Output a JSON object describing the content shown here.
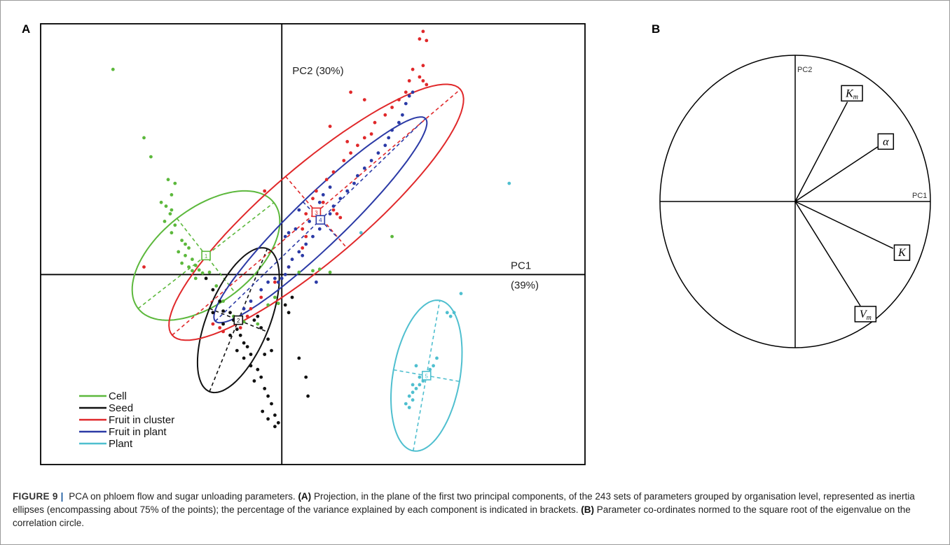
{
  "panel_a_label": "A",
  "panel_b_label": "B",
  "caption": {
    "figure_number": "FIGURE 9",
    "separator": "|",
    "lead": "PCA on phloem flow and sugar unloading parameters.",
    "a_tag": "(A)",
    "a_text": "Projection, in the plane of the first two principal components, of the 243 sets of parameters grouped by organisation level, represented as inertia ellipses (encompassing about 75% of the points); the percentage of the variance explained by each component is indicated in brackets.",
    "b_tag": "(B)",
    "b_text": "Parameter co-ordinates normed to the square root of the eigenvalue on the correlation circle."
  },
  "chart_data": [
    {
      "type": "scatter",
      "panel": "A",
      "xlabel": "PC1",
      "xlabel_note": "(39%)",
      "ylabel": "PC2 (30%)",
      "xlim": [
        -3.5,
        4.4
      ],
      "ylim": [
        -2.5,
        3.3
      ],
      "grid": false,
      "legend_position": "bottom-left",
      "series": [
        {
          "name": "Cell",
          "color": "#5cb83c",
          "ellipse": {
            "cx": -1.1,
            "cy": 0.25,
            "rx": 1.25,
            "ry": 0.62,
            "angle_deg": -38
          },
          "centroid_label": "1",
          "points": [
            [
              -2.45,
              2.7
            ],
            [
              -2.0,
              1.8
            ],
            [
              -1.9,
              1.55
            ],
            [
              -1.65,
              1.25
            ],
            [
              -1.55,
              1.2
            ],
            [
              -1.6,
              1.05
            ],
            [
              -1.75,
              0.95
            ],
            [
              -1.68,
              0.9
            ],
            [
              -1.6,
              0.85
            ],
            [
              -1.62,
              0.8
            ],
            [
              -1.7,
              0.7
            ],
            [
              -1.55,
              0.65
            ],
            [
              -1.6,
              0.55
            ],
            [
              -1.45,
              0.45
            ],
            [
              -1.4,
              0.4
            ],
            [
              -1.35,
              0.35
            ],
            [
              -1.5,
              0.3
            ],
            [
              -1.4,
              0.25
            ],
            [
              -1.3,
              0.2
            ],
            [
              -1.45,
              0.15
            ],
            [
              -1.35,
              0.1
            ],
            [
              -1.25,
              0.12
            ],
            [
              -1.3,
              0.05
            ],
            [
              -1.2,
              0.06
            ],
            [
              -1.15,
              0.02
            ],
            [
              -1.25,
              -0.05
            ],
            [
              -1.05,
              0.03
            ],
            [
              -0.95,
              -0.15
            ],
            [
              -0.85,
              -0.35
            ],
            [
              -0.7,
              -0.55
            ],
            [
              -0.55,
              -0.62
            ],
            [
              -0.35,
              -0.65
            ],
            [
              -0.2,
              -0.4
            ],
            [
              0.25,
              0.03
            ],
            [
              0.45,
              0.05
            ],
            [
              0.55,
              0.07
            ],
            [
              0.7,
              0.03
            ],
            [
              1.6,
              0.5
            ],
            [
              -0.1,
              -0.3
            ],
            [
              -0.05,
              -0.38
            ]
          ]
        },
        {
          "name": "Seed",
          "color": "#111111",
          "ellipse": {
            "cx": -0.63,
            "cy": -0.6,
            "rx": 1.12,
            "ry": 0.41,
            "angle_deg": -68
          },
          "centroid_label": "2",
          "points": [
            [
              -1.1,
              -0.05
            ],
            [
              -1.0,
              -0.2
            ],
            [
              -0.9,
              -0.35
            ],
            [
              -1.0,
              -0.5
            ],
            [
              -0.85,
              -0.48
            ],
            [
              -0.75,
              -0.5
            ],
            [
              -0.7,
              -0.6
            ],
            [
              -0.85,
              -0.65
            ],
            [
              -0.65,
              -0.72
            ],
            [
              -0.75,
              -0.8
            ],
            [
              -0.6,
              -0.8
            ],
            [
              -0.55,
              -0.9
            ],
            [
              -0.5,
              -0.95
            ],
            [
              -0.65,
              -1.0
            ],
            [
              -0.45,
              -1.05
            ],
            [
              -0.55,
              -1.1
            ],
            [
              -0.45,
              -1.2
            ],
            [
              -0.35,
              -1.25
            ],
            [
              -0.3,
              -1.35
            ],
            [
              -0.4,
              -1.4
            ],
            [
              -0.25,
              -1.5
            ],
            [
              -0.2,
              -1.6
            ],
            [
              -0.15,
              -1.7
            ],
            [
              -0.28,
              -1.8
            ],
            [
              -0.2,
              -1.9
            ],
            [
              -0.1,
              -2.0
            ],
            [
              -0.05,
              -1.95
            ],
            [
              -0.1,
              -1.85
            ],
            [
              0.05,
              -0.4
            ],
            [
              0.1,
              -0.5
            ],
            [
              0.15,
              -0.3
            ],
            [
              0.25,
              -1.1
            ],
            [
              0.35,
              -1.35
            ],
            [
              0.38,
              -1.6
            ],
            [
              -0.4,
              -0.6
            ],
            [
              -0.3,
              -0.7
            ],
            [
              -0.2,
              -0.85
            ],
            [
              -0.15,
              -1.0
            ],
            [
              -0.25,
              -1.05
            ],
            [
              -0.35,
              -0.55
            ]
          ]
        },
        {
          "name": "Fruit in cluster",
          "color": "#e0282a",
          "ellipse": {
            "cx": 0.5,
            "cy": 0.82,
            "rx": 2.75,
            "ry": 0.62,
            "angle_deg": -40.5
          },
          "centroid_label": "3",
          "points": [
            [
              -2.0,
              0.1
            ],
            [
              -1.0,
              -0.65
            ],
            [
              -0.9,
              -0.7
            ],
            [
              -0.85,
              -0.75
            ],
            [
              -0.6,
              -0.7
            ],
            [
              -0.5,
              -0.55
            ],
            [
              -0.45,
              -0.45
            ],
            [
              -0.3,
              -0.3
            ],
            [
              -0.1,
              -0.1
            ],
            [
              0.1,
              0.1
            ],
            [
              0.3,
              0.35
            ],
            [
              0.35,
              0.8
            ],
            [
              0.45,
              1.0
            ],
            [
              0.5,
              1.1
            ],
            [
              0.65,
              1.25
            ],
            [
              0.75,
              1.35
            ],
            [
              0.9,
              1.5
            ],
            [
              1.0,
              1.6
            ],
            [
              1.1,
              1.7
            ],
            [
              1.2,
              1.8
            ],
            [
              1.3,
              1.85
            ],
            [
              1.35,
              2.0
            ],
            [
              1.5,
              2.1
            ],
            [
              1.6,
              2.2
            ],
            [
              1.7,
              2.3
            ],
            [
              1.8,
              2.4
            ],
            [
              1.85,
              2.55
            ],
            [
              2.0,
              2.6
            ],
            [
              1.9,
              2.7
            ],
            [
              2.05,
              2.75
            ],
            [
              2.0,
              3.1
            ],
            [
              2.05,
              3.2
            ],
            [
              2.1,
              3.08
            ],
            [
              2.05,
              2.55
            ],
            [
              2.1,
              2.5
            ],
            [
              1.0,
              2.4
            ],
            [
              1.2,
              2.3
            ],
            [
              0.7,
              1.95
            ],
            [
              0.95,
              1.75
            ],
            [
              -0.25,
              1.1
            ],
            [
              0.6,
              0.95
            ],
            [
              0.75,
              0.85
            ],
            [
              0.8,
              0.8
            ],
            [
              0.85,
              0.75
            ],
            [
              0.3,
              0.6
            ],
            [
              0.35,
              0.5
            ]
          ]
        },
        {
          "name": "Fruit in plant",
          "color": "#2b3aa6",
          "ellipse": {
            "cx": 0.56,
            "cy": 0.72,
            "rx": 2.12,
            "ry": 0.33,
            "angle_deg": -44
          },
          "centroid_label": "4",
          "points": [
            [
              -0.55,
              -0.45
            ],
            [
              -0.45,
              -0.35
            ],
            [
              -0.3,
              -0.2
            ],
            [
              -0.2,
              -0.1
            ],
            [
              -0.1,
              -0.05
            ],
            [
              -0.05,
              -0.1
            ],
            [
              0.0,
              -0.05
            ],
            [
              0.05,
              0.0
            ],
            [
              0.1,
              0.1
            ],
            [
              0.15,
              0.2
            ],
            [
              0.25,
              0.3
            ],
            [
              0.35,
              0.4
            ],
            [
              0.45,
              0.5
            ],
            [
              0.55,
              0.6
            ],
            [
              0.6,
              0.7
            ],
            [
              0.7,
              0.8
            ],
            [
              0.75,
              0.9
            ],
            [
              0.85,
              1.0
            ],
            [
              0.95,
              1.1
            ],
            [
              1.05,
              1.2
            ],
            [
              1.1,
              1.3
            ],
            [
              1.2,
              1.4
            ],
            [
              1.3,
              1.5
            ],
            [
              1.4,
              1.6
            ],
            [
              1.5,
              1.7
            ],
            [
              1.55,
              1.8
            ],
            [
              1.6,
              1.9
            ],
            [
              1.7,
              2.0
            ],
            [
              1.75,
              2.1
            ],
            [
              1.8,
              2.25
            ],
            [
              1.85,
              2.35
            ],
            [
              1.9,
              2.4
            ],
            [
              0.5,
              -0.1
            ],
            [
              0.3,
              0.25
            ],
            [
              0.2,
              0.6
            ],
            [
              0.4,
              0.7
            ],
            [
              0.25,
              0.85
            ],
            [
              0.55,
              0.95
            ],
            [
              0.6,
              1.05
            ],
            [
              0.7,
              1.15
            ],
            [
              0.05,
              0.5
            ],
            [
              0.1,
              0.55
            ]
          ]
        },
        {
          "name": "Plant",
          "color": "#4fbfcf",
          "ellipse": {
            "cx": 2.1,
            "cy": -1.33,
            "rx": 1.11,
            "ry": 0.44,
            "angle_deg": -80
          },
          "centroid_label": "5",
          "points": [
            [
              3.3,
              1.2
            ],
            [
              2.6,
              -0.25
            ],
            [
              2.5,
              -0.5
            ],
            [
              2.4,
              -0.5
            ],
            [
              2.45,
              -0.55
            ],
            [
              2.25,
              -1.1
            ],
            [
              2.2,
              -1.2
            ],
            [
              2.15,
              -1.25
            ],
            [
              2.1,
              -1.3
            ],
            [
              2.05,
              -1.4
            ],
            [
              2.0,
              -1.45
            ],
            [
              1.95,
              -1.5
            ],
            [
              1.9,
              -1.55
            ],
            [
              1.85,
              -1.6
            ],
            [
              1.9,
              -1.65
            ],
            [
              1.8,
              -1.7
            ],
            [
              1.85,
              -1.75
            ],
            [
              1.9,
              -1.45
            ],
            [
              2.0,
              -1.35
            ],
            [
              1.95,
              -1.2
            ],
            [
              1.15,
              0.55
            ]
          ]
        }
      ]
    },
    {
      "type": "correlation-circle",
      "panel": "B",
      "xlabel": "PC1",
      "ylabel": "PC2",
      "variables": [
        {
          "label": "K",
          "sub": "m",
          "x": 0.42,
          "y": 0.74
        },
        {
          "label": "α",
          "sub": "",
          "x": 0.67,
          "y": 0.41
        },
        {
          "label": "K",
          "sub": "",
          "x": 0.79,
          "y": -0.35
        },
        {
          "label": "V",
          "sub": "m",
          "x": 0.52,
          "y": -0.77
        }
      ]
    }
  ]
}
